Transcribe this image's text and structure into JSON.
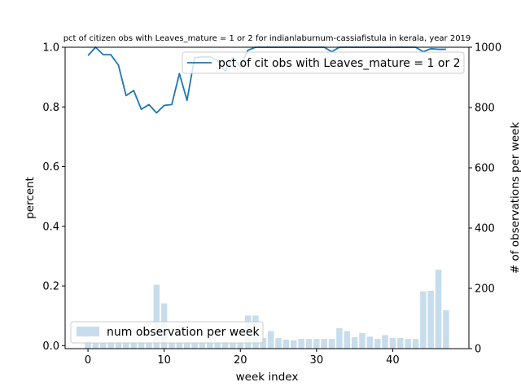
{
  "chart_data": {
    "type": "bar+line",
    "title": "pct of citizen obs with Leaves_mature = 1 or 2 for indianlaburnum-cassiafistula in kerala, year 2019",
    "xlabel": "week index",
    "ylabel_left": "percent",
    "ylabel_right": "# of observations per week",
    "xlim": [
      -3,
      50
    ],
    "ylim_left": [
      -0.01,
      1.0
    ],
    "ylim_right": [
      0,
      1000
    ],
    "xticks": [
      0,
      10,
      20,
      30,
      40
    ],
    "yticks_left": [
      "0.0",
      "0.2",
      "0.4",
      "0.6",
      "0.8",
      "1.0"
    ],
    "yticks_right": [
      "0",
      "200",
      "400",
      "600",
      "800",
      "1000"
    ],
    "x": [
      0,
      1,
      2,
      3,
      4,
      5,
      6,
      7,
      8,
      9,
      10,
      11,
      12,
      13,
      14,
      15,
      16,
      17,
      18,
      19,
      20,
      21,
      22,
      23,
      24,
      25,
      26,
      27,
      28,
      29,
      30,
      31,
      32,
      33,
      34,
      35,
      36,
      37,
      38,
      39,
      40,
      41,
      42,
      43,
      44,
      45,
      46,
      47
    ],
    "series": [
      {
        "name": "pct of cit obs with Leaves_mature = 1 or 2",
        "kind": "line",
        "axis": "left",
        "color": "#1f77b4",
        "values": [
          0.972,
          1.0,
          0.975,
          0.975,
          0.94,
          0.838,
          0.855,
          0.792,
          0.808,
          0.78,
          0.805,
          0.808,
          0.912,
          0.822,
          0.965,
          0.968,
          0.968,
          0.955,
          0.92,
          0.965,
          0.935,
          0.99,
          1.0,
          1.0,
          1.0,
          1.0,
          1.0,
          1.0,
          1.0,
          1.0,
          1.0,
          1.0,
          0.985,
          1.0,
          1.0,
          1.0,
          1.0,
          1.0,
          1.0,
          1.0,
          1.0,
          1.0,
          1.0,
          1.0,
          0.985,
          0.995,
          0.993,
          0.993
        ]
      },
      {
        "name": "num observation per week",
        "kind": "bar",
        "axis": "right",
        "color": "#1f77b4",
        "alpha": 0.25,
        "values": [
          25,
          20,
          20,
          20,
          20,
          20,
          20,
          20,
          20,
          212,
          150,
          20,
          20,
          20,
          20,
          20,
          20,
          20,
          20,
          20,
          20,
          110,
          110,
          35,
          58,
          35,
          30,
          28,
          32,
          32,
          32,
          32,
          32,
          68,
          58,
          38,
          52,
          40,
          32,
          45,
          35,
          35,
          32,
          32,
          190,
          192,
          262,
          128
        ]
      }
    ],
    "legend_line": {
      "position": "upper right",
      "label": "pct of cit obs with Leaves_mature = 1 or 2"
    },
    "legend_bar": {
      "position": "lower left",
      "label": "num observation per week"
    }
  }
}
